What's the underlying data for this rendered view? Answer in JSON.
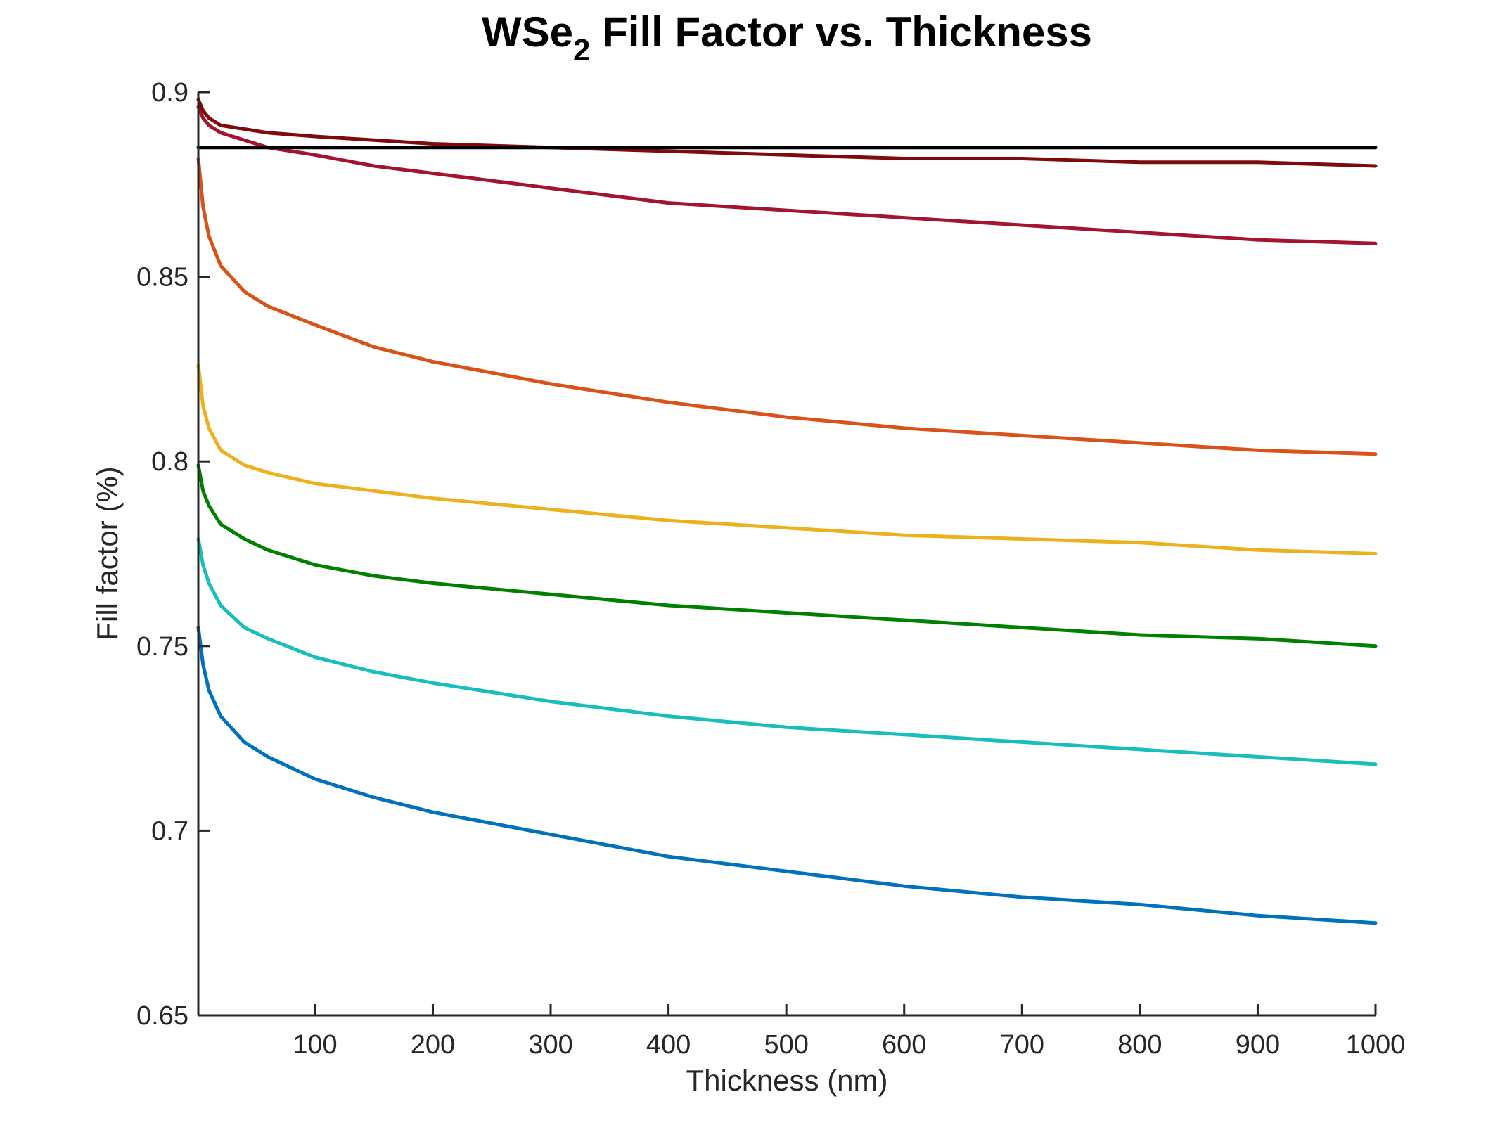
{
  "chart_data": {
    "type": "line",
    "title_main": "WSe",
    "title_sub": "2",
    "title_rest": " Fill Factor vs. Thickness",
    "xlabel": "Thickness (nm)",
    "ylabel": "Fill factor (%)",
    "xlim": [
      1,
      1000
    ],
    "ylim": [
      0.65,
      0.9
    ],
    "xticks": [
      100,
      200,
      300,
      400,
      500,
      600,
      700,
      800,
      900,
      1000
    ],
    "xtick_labels": [
      "100",
      "200",
      "300",
      "400",
      "500",
      "600",
      "700",
      "800",
      "900",
      "1000"
    ],
    "yticks": [
      0.65,
      0.7,
      0.75,
      0.8,
      0.85,
      0.9
    ],
    "ytick_labels": [
      "0.65",
      "0.7",
      "0.75",
      "0.8",
      "0.85",
      "0.9"
    ],
    "grid": false,
    "legend": "none",
    "x": [
      1,
      5,
      10,
      20,
      40,
      60,
      100,
      150,
      200,
      300,
      400,
      500,
      600,
      700,
      800,
      900,
      1000
    ],
    "series": [
      {
        "color": "#0072BD",
        "values": [
          0.755,
          0.745,
          0.738,
          0.731,
          0.724,
          0.72,
          0.714,
          0.709,
          0.705,
          0.699,
          0.693,
          0.689,
          0.685,
          0.682,
          0.68,
          0.677,
          0.675
        ]
      },
      {
        "color": "#17BEBB",
        "values": [
          0.779,
          0.772,
          0.767,
          0.761,
          0.755,
          0.752,
          0.747,
          0.743,
          0.74,
          0.735,
          0.731,
          0.728,
          0.726,
          0.724,
          0.722,
          0.72,
          0.718
        ]
      },
      {
        "color": "#008000",
        "values": [
          0.799,
          0.792,
          0.788,
          0.783,
          0.779,
          0.776,
          0.772,
          0.769,
          0.767,
          0.764,
          0.761,
          0.759,
          0.757,
          0.755,
          0.753,
          0.752,
          0.75
        ]
      },
      {
        "color": "#EDB120",
        "values": [
          0.826,
          0.815,
          0.809,
          0.803,
          0.799,
          0.797,
          0.794,
          0.792,
          0.79,
          0.787,
          0.784,
          0.782,
          0.78,
          0.779,
          0.778,
          0.776,
          0.775
        ]
      },
      {
        "color": "#D95319",
        "values": [
          0.882,
          0.869,
          0.861,
          0.853,
          0.846,
          0.842,
          0.837,
          0.831,
          0.827,
          0.821,
          0.816,
          0.812,
          0.809,
          0.807,
          0.805,
          0.803,
          0.802
        ]
      },
      {
        "color": "#A2142F",
        "values": [
          0.896,
          0.893,
          0.891,
          0.889,
          0.887,
          0.885,
          0.883,
          0.88,
          0.878,
          0.874,
          0.87,
          0.868,
          0.866,
          0.864,
          0.862,
          0.86,
          0.859
        ]
      },
      {
        "color": "#7E0A0A",
        "values": [
          0.898,
          0.895,
          0.893,
          0.891,
          0.89,
          0.889,
          0.888,
          0.887,
          0.886,
          0.885,
          0.884,
          0.883,
          0.882,
          0.882,
          0.881,
          0.881,
          0.88
        ]
      },
      {
        "color": "#000000",
        "values": [
          0.885,
          0.885,
          0.885,
          0.885,
          0.885,
          0.885,
          0.885,
          0.885,
          0.885,
          0.885,
          0.885,
          0.885,
          0.885,
          0.885,
          0.885,
          0.885,
          0.885
        ]
      }
    ]
  }
}
